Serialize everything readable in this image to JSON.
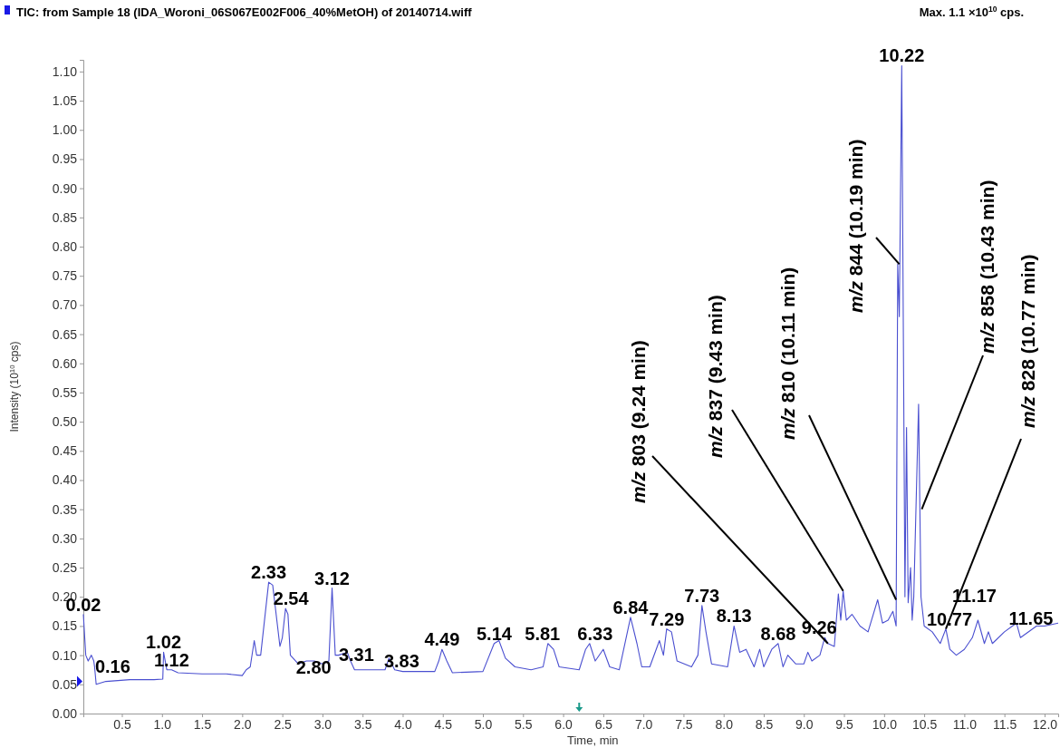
{
  "chart_data": {
    "type": "line",
    "title": "TIC: from Sample 18 (IDA_Woroni_06S067E002F006_40%MetOH) of 20140714.wiff",
    "subtitle": "Max. 1.1 ×10$^{10}$ cps.",
    "xlabel": "Time, min",
    "ylabel": "Intensity (10$^{10}$ cps)",
    "xlim": [
      0.02,
      12.17
    ],
    "ylim": [
      0,
      1.12
    ],
    "xticks": [
      {
        "value": 0.5,
        "label": "0.5"
      },
      {
        "value": 1,
        "label": "1.0"
      },
      {
        "value": 1.5,
        "label": "1.5"
      },
      {
        "value": 2,
        "label": "2.0"
      },
      {
        "value": 2.5,
        "label": "2.5"
      },
      {
        "value": 3,
        "label": "3.0"
      },
      {
        "value": 3.5,
        "label": "3.5"
      },
      {
        "value": 4,
        "label": "4.0"
      },
      {
        "value": 4.5,
        "label": "4.5"
      },
      {
        "value": 5,
        "label": "5.0"
      },
      {
        "value": 5.5,
        "label": "5.5"
      },
      {
        "value": 6,
        "label": "6.0"
      },
      {
        "value": 6.5,
        "label": "6.5"
      },
      {
        "value": 7,
        "label": "7.0"
      },
      {
        "value": 7.5,
        "label": "7.5"
      },
      {
        "value": 8,
        "label": "8.0"
      },
      {
        "value": 8.5,
        "label": "8.5"
      },
      {
        "value": 9,
        "label": "9.0"
      },
      {
        "value": 9.5,
        "label": "9.5"
      },
      {
        "value": 10,
        "label": "10.0"
      },
      {
        "value": 10.5,
        "label": "10.5"
      },
      {
        "value": 11,
        "label": "11.0"
      },
      {
        "value": 11.5,
        "label": "11.5"
      },
      {
        "value": 12,
        "label": "12.0"
      }
    ],
    "yticks": [
      {
        "value": 0,
        "label": "0.00"
      },
      {
        "value": 0.05,
        "label": "0.05"
      },
      {
        "value": 0.1,
        "label": "0.10"
      },
      {
        "value": 0.15,
        "label": "0.15"
      },
      {
        "value": 0.2,
        "label": "0.20"
      },
      {
        "value": 0.25,
        "label": "0.25"
      },
      {
        "value": 0.3,
        "label": "0.30"
      },
      {
        "value": 0.35,
        "label": "0.35"
      },
      {
        "value": 0.4,
        "label": "0.40"
      },
      {
        "value": 0.45,
        "label": "0.45"
      },
      {
        "value": 0.5,
        "label": "0.50"
      },
      {
        "value": 0.55,
        "label": "0.55"
      },
      {
        "value": 0.6,
        "label": "0.60"
      },
      {
        "value": 0.65,
        "label": "0.65"
      },
      {
        "value": 0.7,
        "label": "0.70"
      },
      {
        "value": 0.75,
        "label": "0.75"
      },
      {
        "value": 0.8,
        "label": "0.80"
      },
      {
        "value": 0.85,
        "label": "0.85"
      },
      {
        "value": 0.9,
        "label": "0.90"
      },
      {
        "value": 0.95,
        "label": "0.95"
      },
      {
        "value": 1,
        "label": "1.00"
      },
      {
        "value": 1.05,
        "label": "1.05"
      },
      {
        "value": 1.1,
        "label": "1.10"
      }
    ],
    "grid": false,
    "marker": "none",
    "line_style": "solid",
    "series": [
      {
        "color": "#4a4fd0",
        "x": [
          0.02,
          0.05,
          0.08,
          0.12,
          0.15,
          0.16,
          0.18,
          0.3,
          0.6,
          0.9,
          1.01,
          1.02,
          1.06,
          1.12,
          1.2,
          1.5,
          1.8,
          2.0,
          2.05,
          2.1,
          2.15,
          2.18,
          2.23,
          2.33,
          2.38,
          2.47,
          2.5,
          2.54,
          2.57,
          2.6,
          2.7,
          2.8,
          2.9,
          3.0,
          3.08,
          3.12,
          3.16,
          3.2,
          3.31,
          3.35,
          3.4,
          3.7,
          3.78,
          3.83,
          3.9,
          4.0,
          4.4,
          4.45,
          4.49,
          4.55,
          4.62,
          5.0,
          5.14,
          5.2,
          5.28,
          5.4,
          5.6,
          5.75,
          5.81,
          5.88,
          5.95,
          6.2,
          6.28,
          6.33,
          6.4,
          6.5,
          6.58,
          6.7,
          6.84,
          6.92,
          6.98,
          7.08,
          7.2,
          7.25,
          7.29,
          7.35,
          7.42,
          7.6,
          7.68,
          7.73,
          7.78,
          7.85,
          8.05,
          8.13,
          8.2,
          8.28,
          8.38,
          8.45,
          8.5,
          8.6,
          8.68,
          8.74,
          8.8,
          8.9,
          9.0,
          9.05,
          9.1,
          9.2,
          9.26,
          9.3,
          9.38,
          9.43,
          9.46,
          9.49,
          9.53,
          9.6,
          9.7,
          9.8,
          9.92,
          9.98,
          10.05,
          10.11,
          10.15,
          10.17,
          10.19,
          10.22,
          10.26,
          10.28,
          10.3,
          10.33,
          10.35,
          10.37,
          10.43,
          10.46,
          10.5,
          10.6,
          10.7,
          10.77,
          10.82,
          10.9,
          11.0,
          11.1,
          11.17,
          11.25,
          11.3,
          11.35,
          11.5,
          11.65,
          11.7,
          11.9,
          12.0,
          12.17
        ],
        "values": [
          0.17,
          0.1,
          0.09,
          0.1,
          0.09,
          0.08,
          0.05,
          0.055,
          0.058,
          0.058,
          0.059,
          0.105,
          0.075,
          0.075,
          0.07,
          0.068,
          0.068,
          0.065,
          0.075,
          0.08,
          0.125,
          0.1,
          0.1,
          0.225,
          0.22,
          0.115,
          0.13,
          0.18,
          0.17,
          0.1,
          0.085,
          0.09,
          0.09,
          0.085,
          0.09,
          0.215,
          0.1,
          0.1,
          0.105,
          0.09,
          0.075,
          0.075,
          0.075,
          0.095,
          0.075,
          0.072,
          0.072,
          0.09,
          0.11,
          0.09,
          0.07,
          0.072,
          0.12,
          0.125,
          0.095,
          0.08,
          0.075,
          0.08,
          0.12,
          0.11,
          0.08,
          0.075,
          0.11,
          0.12,
          0.09,
          0.11,
          0.08,
          0.075,
          0.165,
          0.12,
          0.08,
          0.08,
          0.125,
          0.1,
          0.145,
          0.14,
          0.09,
          0.08,
          0.1,
          0.185,
          0.14,
          0.085,
          0.08,
          0.15,
          0.105,
          0.11,
          0.08,
          0.11,
          0.08,
          0.11,
          0.12,
          0.08,
          0.1,
          0.085,
          0.085,
          0.105,
          0.09,
          0.1,
          0.13,
          0.12,
          0.115,
          0.205,
          0.16,
          0.21,
          0.16,
          0.17,
          0.15,
          0.14,
          0.195,
          0.155,
          0.16,
          0.175,
          0.15,
          0.77,
          0.68,
          1.11,
          0.2,
          0.49,
          0.19,
          0.25,
          0.16,
          0.2,
          0.53,
          0.2,
          0.15,
          0.14,
          0.12,
          0.145,
          0.11,
          0.1,
          0.11,
          0.13,
          0.16,
          0.12,
          0.14,
          0.12,
          0.14,
          0.155,
          0.13,
          0.15,
          0.15,
          0.155
        ]
      }
    ],
    "annotations": [
      {
        "text": "0.02",
        "x": 0.02,
        "y": 0.17
      },
      {
        "text": "0.16",
        "x": 0.16,
        "y": 0.08
      },
      {
        "text": "1.02",
        "x": 1.02,
        "y": 0.105
      },
      {
        "text": "1.12",
        "x": 1.12,
        "y": 0.075
      },
      {
        "text": "2.33",
        "x": 2.33,
        "y": 0.225
      },
      {
        "text": "2.54",
        "x": 2.54,
        "y": 0.18
      },
      {
        "text": "2.80",
        "x": 2.8,
        "y": 0.09
      },
      {
        "text": "3.12",
        "x": 3.12,
        "y": 0.215
      },
      {
        "text": "3.31",
        "x": 3.31,
        "y": 0.105
      },
      {
        "text": "3.83",
        "x": 3.83,
        "y": 0.095
      },
      {
        "text": "4.49",
        "x": 4.49,
        "y": 0.11
      },
      {
        "text": "5.14",
        "x": 5.14,
        "y": 0.12
      },
      {
        "text": "5.81",
        "x": 5.81,
        "y": 0.12
      },
      {
        "text": "6.33",
        "x": 6.33,
        "y": 0.12
      },
      {
        "text": "6.84",
        "x": 6.84,
        "y": 0.165
      },
      {
        "text": "7.29",
        "x": 7.29,
        "y": 0.145
      },
      {
        "text": "7.73",
        "x": 7.73,
        "y": 0.185
      },
      {
        "text": "8.13",
        "x": 8.13,
        "y": 0.15
      },
      {
        "text": "8.68",
        "x": 8.68,
        "y": 0.12
      },
      {
        "text": "9.26",
        "x": 9.26,
        "y": 0.13
      },
      {
        "text": "10.22",
        "x": 10.22,
        "y": 1.11
      },
      {
        "text": "10.77",
        "x": 10.77,
        "y": 0.145
      },
      {
        "text": "11.17",
        "x": 11.17,
        "y": 0.16
      },
      {
        "text": "11.65",
        "x": 11.65,
        "y": 0.155
      },
      {
        "text": "m/z 803 (9.24 min)",
        "x": 9.3,
        "y": 0.12
      },
      {
        "text": "m/z 837 (9.43 min)",
        "x": 9.49,
        "y": 0.21
      },
      {
        "text": "m/z 810 (10.11 min)",
        "x": 10.15,
        "y": 0.195
      },
      {
        "text": "m/z 844 (10.19 min)",
        "x": 10.19,
        "y": 0.77
      },
      {
        "text": "m/z 858 (10.43 min)",
        "x": 10.47,
        "y": 0.35
      },
      {
        "text": "m/z 828 (10.77 min)",
        "x": 10.77,
        "y": 0.145
      }
    ]
  }
}
